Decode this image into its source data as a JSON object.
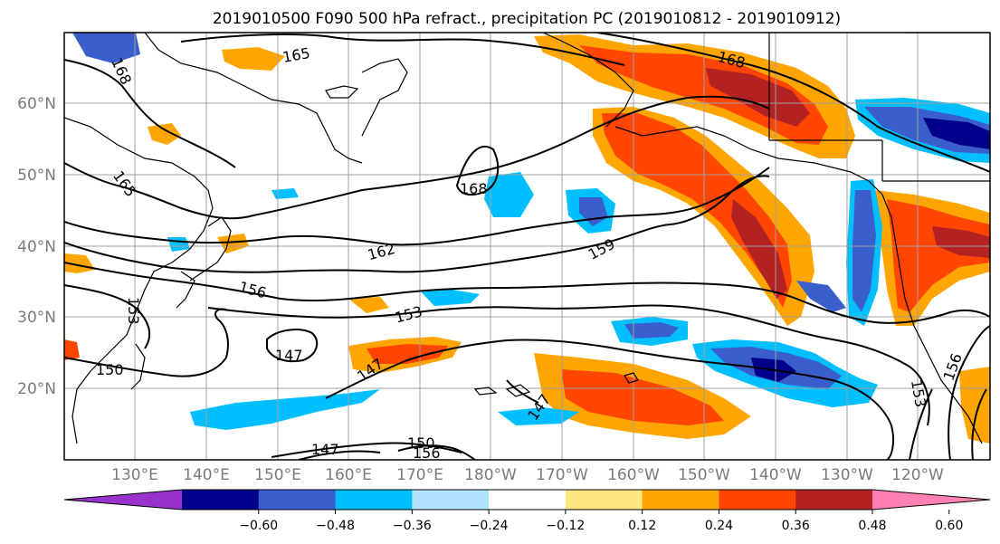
{
  "title": "2019010500 F090 500 hPa refract., precipitation PC (2019010812 - 2019010912)",
  "map": {
    "lat_labels": [
      "60°N",
      "50°N",
      "40°N",
      "30°N",
      "20°N"
    ],
    "lon_labels": [
      "130°E",
      "140°E",
      "150°E",
      "160°E",
      "170°E",
      "180°W",
      "170°W",
      "160°W",
      "150°W",
      "140°W",
      "130°W",
      "120°W"
    ],
    "contour_labels": [
      "165",
      "168",
      "168",
      "168",
      "165",
      "162",
      "159",
      "156",
      "153",
      "150",
      "147",
      "147",
      "147",
      "153",
      "156",
      "153",
      "150",
      "147",
      "156"
    ]
  },
  "colorbar": {
    "tick_labels": [
      "−0.60",
      "−0.48",
      "−0.36",
      "−0.24",
      "−0.12",
      "0.12",
      "0.24",
      "0.36",
      "0.48",
      "0.60"
    ],
    "colors": [
      "#9932cc",
      "#00008b",
      "#3a5fcd",
      "#00bfff",
      "#b0e2ff",
      "#ffffff",
      "#ffe680",
      "#ffa500",
      "#ff4500",
      "#b22222",
      "#ff7fb3"
    ]
  },
  "colors": {
    "contour": "#000000",
    "grid": "#a0a0a0",
    "axis_label": "#7a7a7a"
  }
}
